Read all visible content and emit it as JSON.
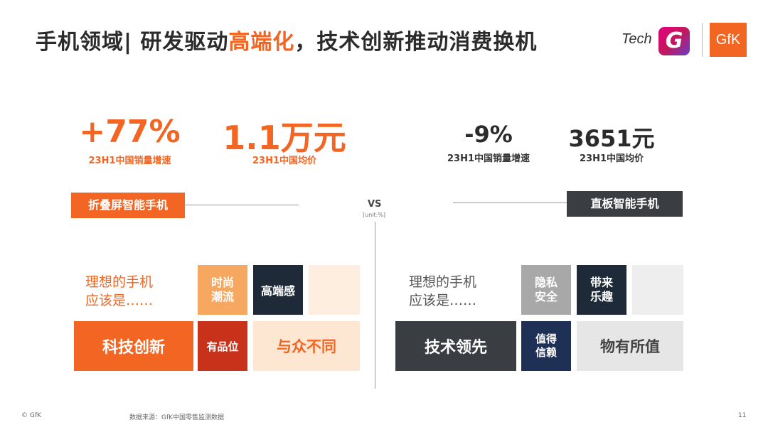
{
  "header": {
    "title_pre": "手机领域| 研发驱动",
    "title_highlight": "高端化",
    "title_post": "，技术创新推动消费换机"
  },
  "logos": {
    "tech": "Tech",
    "g": "G",
    "gfk": "GfK"
  },
  "left": {
    "metric1_value": "+77%",
    "metric1_label": "23H1中国销量增速",
    "metric2_value": "1.1万元",
    "metric2_label": "23H1中国均价",
    "category": "折叠屏智能手机",
    "question_line1": "理想的手机",
    "question_line2": "应该是……",
    "tiles": {
      "fashion": "时尚\n潮流",
      "premium": "高端感",
      "tech": "科技创新",
      "taste": "有品位",
      "unique": "与众不同"
    }
  },
  "center": {
    "vs": "VS",
    "unit": "[unit:%]"
  },
  "right": {
    "metric1_value": "-9%",
    "metric1_label": "23H1中国销量增速",
    "metric2_value": "3651元",
    "metric2_label": "23H1中国均价",
    "category": "直板智能手机",
    "question_line1": "理想的手机",
    "question_line2": "应该是……",
    "tiles": {
      "privacy": "隐私\n安全",
      "fun": "带来\n乐趣",
      "leading": "技术领先",
      "trust": "值得\n信赖",
      "value": "物有所值"
    }
  },
  "footer": {
    "copyright": "© GfK",
    "source": "数据来源：GfK中国零售监测数据",
    "page": "11"
  },
  "colors": {
    "orange": "#f26522",
    "light_orange": "#f7a860",
    "pale_orange": "#fde8d8",
    "dark_navy": "#1f2a38",
    "dark_red": "#c8311a",
    "charcoal": "#3a3e42",
    "gray": "#a8a8a8",
    "navy": "#1f3057",
    "light_gray": "#e6e6e6"
  }
}
